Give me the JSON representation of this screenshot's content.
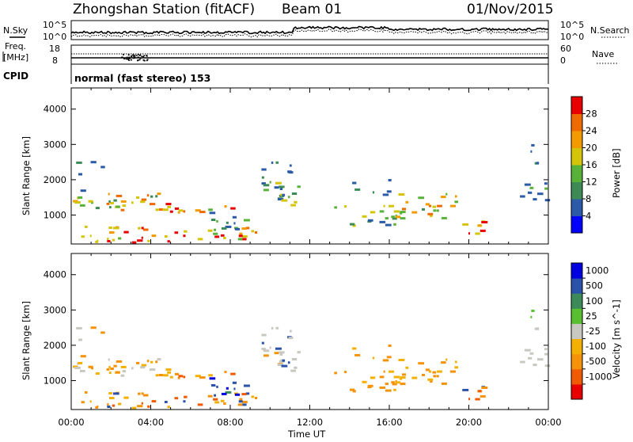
{
  "header": {
    "station_title": "Zhongshan Station (fitACF)",
    "beam": "Beam 01",
    "date": "01/Nov/2015"
  },
  "top_panels": {
    "nsky_label": "N.Sky",
    "nsearch_label": "N.Search",
    "noise_tick_top": "10^5",
    "noise_tick_bottom": "10^0",
    "freq_label_line1": "Freq.",
    "freq_label_line2": "[MHz]",
    "freq_tick_top": "18",
    "freq_tick_bottom": "8",
    "nave_label": "Nave",
    "nave_tick_top": "60",
    "nave_tick_bottom": "0",
    "cpid_label": "CPID",
    "cpid_text": "normal (fast stereo) 153"
  },
  "colors": {
    "power": [
      "#0000ff",
      "#2a5aa8",
      "#3e8a57",
      "#58b23a",
      "#d4c40a",
      "#f29a00",
      "#ef6a00",
      "#e80000"
    ],
    "velocity": [
      "#e80000",
      "#f05a00",
      "#f5920a",
      "#f4b000",
      "#c8c8c0",
      "#58c030",
      "#3c8a5a",
      "#2a52a8",
      "#0000e0"
    ]
  },
  "chart_data": [
    {
      "type": "heatmap",
      "title": "Power",
      "ylabel": "Slant Range [km]",
      "xlabel": "Time UT",
      "x_ticks": [
        "00:00",
        "04:00",
        "08:00",
        "12:00",
        "16:00",
        "20:00",
        "00:00"
      ],
      "y_ticks": [
        "1000",
        "2000",
        "3000",
        "4000"
      ],
      "ylim": [
        180,
        4600
      ],
      "xlim_hours": [
        0,
        24
      ],
      "colorbar_label": "Power [dB]",
      "colorbar_ticks": [
        "4",
        "8",
        "12",
        "16",
        "20",
        "24",
        "28"
      ],
      "colorbar_range": [
        0,
        32
      ]
    },
    {
      "type": "heatmap",
      "title": "Velocity",
      "ylabel": "Slant Range [km]",
      "xlabel": "Time UT",
      "x_ticks": [
        "00:00",
        "04:00",
        "08:00",
        "12:00",
        "16:00",
        "20:00",
        "00:00"
      ],
      "y_ticks": [
        "1000",
        "2000",
        "3000",
        "4000"
      ],
      "ylim": [
        180,
        4600
      ],
      "xlim_hours": [
        0,
        24
      ],
      "colorbar_label": "Velocity [m s^-1]",
      "colorbar_ticks": [
        "1000",
        "500",
        "100",
        "25",
        "-25",
        "-100",
        "-500",
        "-1000"
      ]
    }
  ],
  "footer": {
    "time_label": "Time UT"
  }
}
